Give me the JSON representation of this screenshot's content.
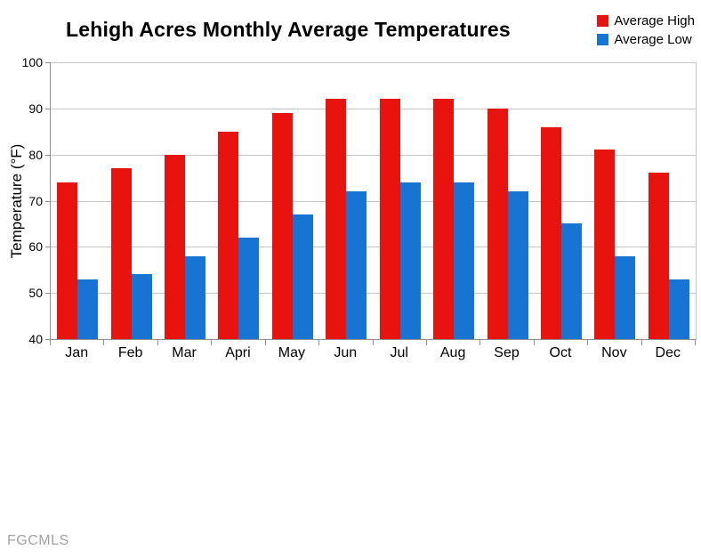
{
  "watermark": {
    "text": "FGCMLS"
  },
  "chart_data": {
    "type": "bar",
    "title": "Lehigh Acres Monthly Average Temperatures",
    "xlabel": "",
    "ylabel": "Temperature (°F)",
    "categories": [
      "Jan",
      "Feb",
      "Mar",
      "Apri",
      "May",
      "Jun",
      "Jul",
      "Aug",
      "Sep",
      "Oct",
      "Nov",
      "Dec"
    ],
    "series": [
      {
        "name": "Average High",
        "color": "#e8120e",
        "values": [
          74,
          77,
          80,
          85,
          89,
          92,
          92,
          92,
          90,
          86,
          81,
          76
        ]
      },
      {
        "name": "Average Low",
        "color": "#1874d2",
        "values": [
          53,
          54,
          58,
          62,
          67,
          72,
          74,
          74,
          72,
          65,
          58,
          53
        ]
      }
    ],
    "ylim": [
      40,
      100
    ],
    "yticks": [
      40,
      50,
      60,
      70,
      80,
      90,
      100
    ],
    "grid": "horizontal",
    "legend_position": "top-right",
    "colors": {
      "gridline": "#c6c6c6",
      "axis": "#8f8f8f",
      "background": "#ffffff"
    }
  }
}
